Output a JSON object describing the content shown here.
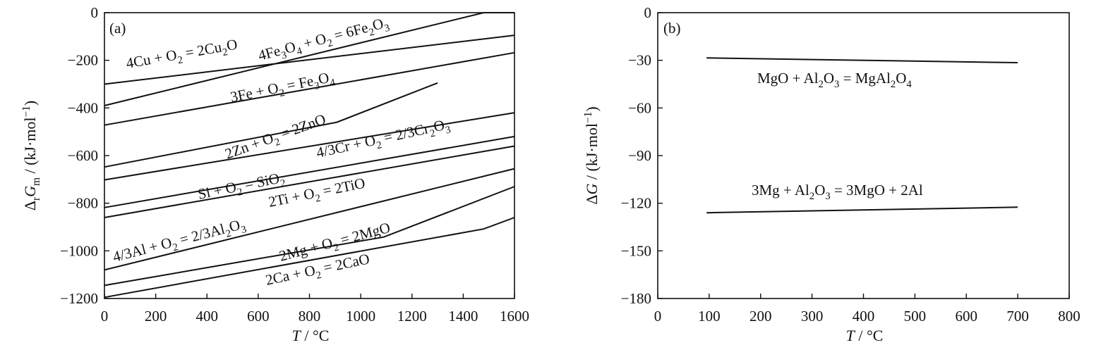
{
  "chart_data": [
    {
      "type": "line",
      "panel_label": "(a)",
      "xlabel": "T / °C",
      "ylabel": "ΔrGm / (kJ·mol−1)",
      "xlim": [
        0,
        1600
      ],
      "ylim": [
        -1200,
        0
      ],
      "xticks": [
        "0",
        "200",
        "400",
        "600",
        "800",
        "1000",
        "1200",
        "1400",
        "1600"
      ],
      "yticks": [
        "0",
        "-200",
        "-400",
        "-600",
        "-800",
        "-1000",
        "-1200"
      ],
      "grid": false,
      "series": [
        {
          "name": "4Cu + O2 = 2Cu2O",
          "x": [
            0,
            1600
          ],
          "y": [
            -300,
            -95
          ]
        },
        {
          "name": "4Fe3O4 + O2 = 6Fe2O3",
          "x": [
            0,
            1480,
            1600
          ],
          "y": [
            -390,
            0,
            0
          ]
        },
        {
          "name": "3Fe + O2 = Fe3O4",
          "x": [
            0,
            1600
          ],
          "y": [
            -472,
            -168
          ]
        },
        {
          "name": "2Zn + O2 = 2ZnO",
          "x": [
            0,
            907,
            1300
          ],
          "y": [
            -648,
            -460,
            -295
          ]
        },
        {
          "name": "4/3Cr + O2 = 2/3Cr2O3",
          "x": [
            0,
            1600
          ],
          "y": [
            -702,
            -420
          ]
        },
        {
          "name": "Si + O2 = SiO2",
          "x": [
            0,
            1600
          ],
          "y": [
            -818,
            -520
          ]
        },
        {
          "name": "2Ti + O2 = 2TiO",
          "x": [
            0,
            1600
          ],
          "y": [
            -860,
            -560
          ]
        },
        {
          "name": "4/3Al + O2 = 2/3Al2O3",
          "x": [
            0,
            1600
          ],
          "y": [
            -1080,
            -655
          ]
        },
        {
          "name": "2Mg + O2 = 2MgO",
          "x": [
            0,
            1090,
            1600
          ],
          "y": [
            -1145,
            -942,
            -730
          ]
        },
        {
          "name": "2Ca + O2 = 2CaO",
          "x": [
            0,
            1480,
            1600
          ],
          "y": [
            -1195,
            -908,
            -860
          ]
        }
      ]
    },
    {
      "type": "line",
      "panel_label": "(b)",
      "xlabel": "T / °C",
      "ylabel": "ΔG / (kJ·mol−1)",
      "xlim": [
        0,
        800
      ],
      "ylim": [
        -180,
        0
      ],
      "xticks": [
        "0",
        "100",
        "200",
        "300",
        "400",
        "500",
        "600",
        "700",
        "800"
      ],
      "yticks": [
        "0",
        "-30",
        "-60",
        "-90",
        "-120",
        "-150",
        "-180"
      ],
      "grid": false,
      "series": [
        {
          "name": "MgO + Al2O3 = MgAl2O4",
          "x": [
            95,
            700
          ],
          "y": [
            -28.5,
            -31.5
          ]
        },
        {
          "name": "3Mg + Al2O3 = 3MgO + 2Al",
          "x": [
            95,
            700
          ],
          "y": [
            -126,
            -122.5
          ]
        }
      ]
    }
  ]
}
